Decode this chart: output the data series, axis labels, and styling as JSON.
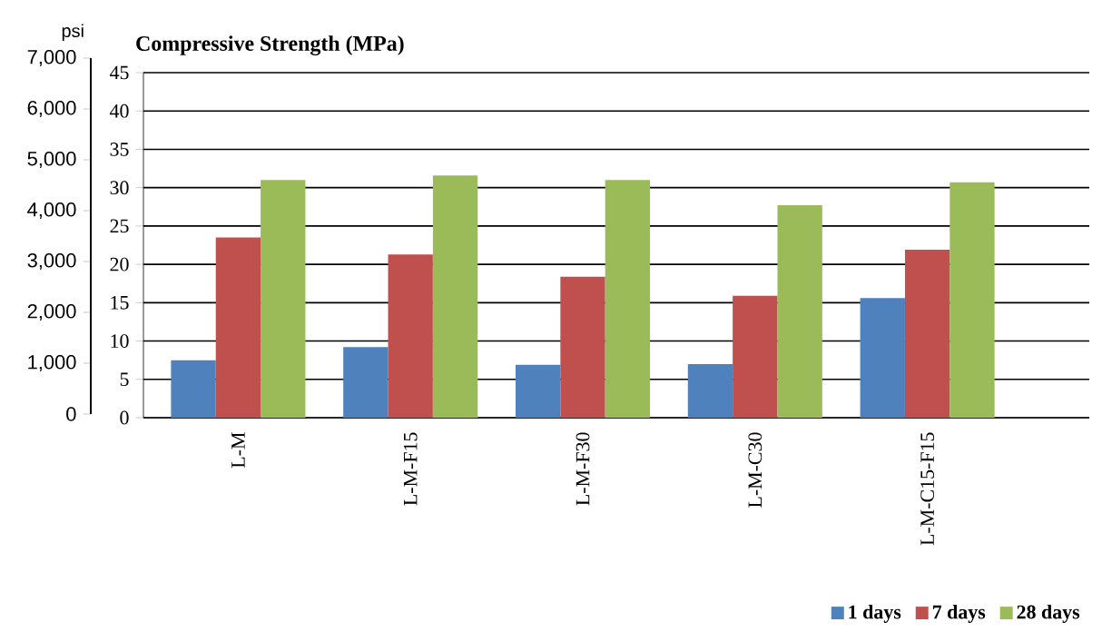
{
  "chart_data": {
    "type": "bar",
    "title": "Compressive Strength (MPa)",
    "categories": [
      "L-M",
      "L-M-F15",
      "L-M-F30",
      "L-M-C30",
      "L-M-C15-F15"
    ],
    "series": [
      {
        "name": "1 days",
        "color": "#4f81bd",
        "values": [
          7.5,
          9.2,
          6.9,
          7.0,
          15.6
        ]
      },
      {
        "name": "7 days",
        "color": "#c0504d",
        "values": [
          23.5,
          21.3,
          18.4,
          15.9,
          21.9
        ]
      },
      {
        "name": "28 days",
        "color": "#9bbb59",
        "values": [
          31.0,
          31.6,
          31.0,
          27.7,
          30.7
        ]
      }
    ],
    "ylim": [
      0,
      45
    ],
    "yticks": [
      0,
      5,
      10,
      15,
      20,
      25,
      30,
      35,
      40,
      45
    ],
    "y2label": "psi",
    "y2lim": [
      0,
      7000
    ],
    "y2ticks": [
      {
        "value": 0,
        "label": "0"
      },
      {
        "value": 1000,
        "label": "1,000"
      },
      {
        "value": 2000,
        "label": "2,000"
      },
      {
        "value": 3000,
        "label": "3,000"
      },
      {
        "value": 4000,
        "label": "4,000"
      },
      {
        "value": 5000,
        "label": "5,000"
      },
      {
        "value": 6000,
        "label": "6,000"
      },
      {
        "value": 7000,
        "label": "7,000"
      }
    ],
    "grid": "y",
    "legend": "bottom right"
  }
}
